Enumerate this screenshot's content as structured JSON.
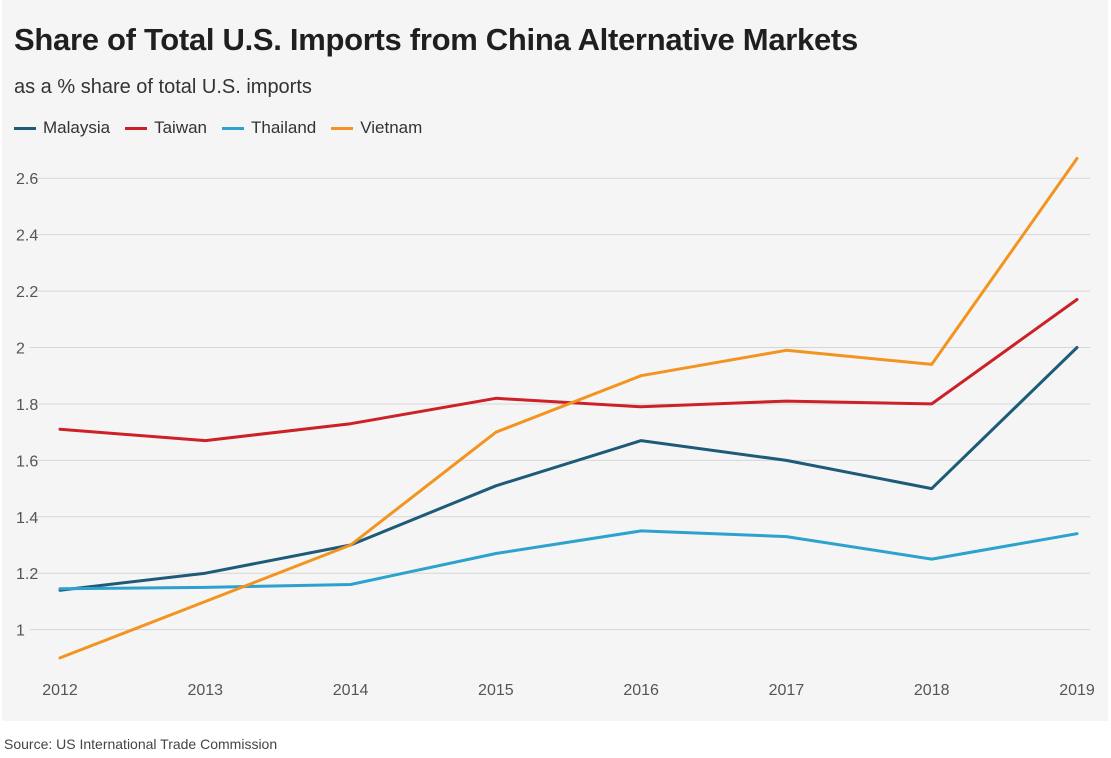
{
  "header": {
    "title": "Share of Total U.S. Imports from China Alternative Markets",
    "subtitle": "as a % share of total U.S. imports"
  },
  "footer": {
    "source": "Source: US International Trade Commission"
  },
  "chart_data": {
    "type": "line",
    "title": "Share of Total U.S. Imports from China Alternative Markets",
    "subtitle": "as a % share of total U.S. imports",
    "xlabel": "",
    "ylabel": "",
    "x": [
      2012,
      2013,
      2014,
      2015,
      2016,
      2017,
      2018,
      2019
    ],
    "x_tick_labels": [
      "2012",
      "2013",
      "2014",
      "2015",
      "2016",
      "2017",
      "2018",
      "2019"
    ],
    "y_ticks": [
      1,
      1.2,
      1.4,
      1.6,
      1.8,
      2,
      2.2,
      2.4,
      2.6
    ],
    "y_tick_labels": [
      "1",
      "1.2",
      "1.4",
      "1.6",
      "1.8",
      "2",
      "2.2",
      "2.4",
      "2.6"
    ],
    "ylim": [
      0.85,
      2.7
    ],
    "grid": true,
    "legend_position": "top-left",
    "series": [
      {
        "name": "Malaysia",
        "color": "#1d5b79",
        "values": [
          1.14,
          1.2,
          1.3,
          1.51,
          1.67,
          1.6,
          1.5,
          2.0
        ]
      },
      {
        "name": "Taiwan",
        "color": "#cc2128",
        "values": [
          1.71,
          1.67,
          1.73,
          1.82,
          1.79,
          1.81,
          1.8,
          2.17
        ]
      },
      {
        "name": "Thailand",
        "color": "#2da2cf",
        "values": [
          1.145,
          1.15,
          1.16,
          1.27,
          1.35,
          1.33,
          1.25,
          1.34
        ]
      },
      {
        "name": "Vietnam",
        "color": "#f2941f",
        "values": [
          0.9,
          1.1,
          1.3,
          1.7,
          1.9,
          1.99,
          1.94,
          2.67
        ]
      }
    ]
  }
}
